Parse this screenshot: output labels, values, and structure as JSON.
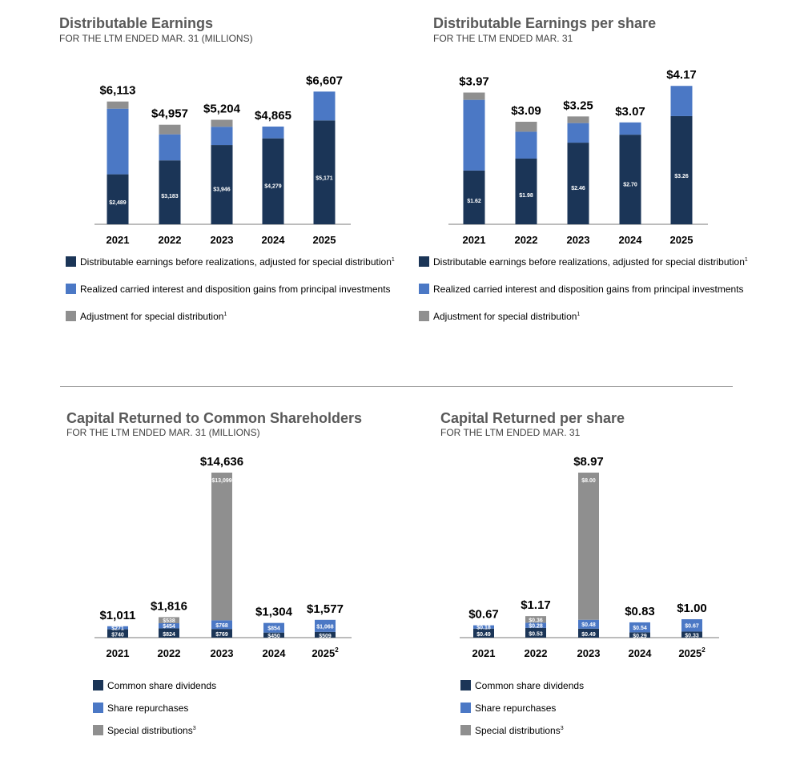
{
  "colors": {
    "dark": "#1b3557",
    "blue": "#4b78c5",
    "gray": "#8f8f8f",
    "axis": "#a6a6a6"
  },
  "chart_data": [
    {
      "type": "bar",
      "stacked": true,
      "title": "Distributable Earnings",
      "subtitle": "FOR THE LTM ENDED MAR. 31 (MILLIONS)",
      "categories": [
        "2021",
        "2022",
        "2023",
        "2024",
        "2025"
      ],
      "category_notes": [
        "",
        "",
        "",
        "",
        ""
      ],
      "totals": [
        "$6,113",
        "$4,957",
        "$5,204",
        "$4,865",
        "$6,607"
      ],
      "ylim": [
        0,
        6700
      ],
      "series": [
        {
          "name": "Distributable earnings before realizations, adjusted for special distribution",
          "note": "1",
          "color": "dark",
          "values": [
            2489,
            3183,
            3946,
            4279,
            5171
          ],
          "labels": [
            "$2,489",
            "$3,183",
            "$3,946",
            "$4,279",
            "$5,171"
          ]
        },
        {
          "name": "Realized carried interest and disposition gains from principal investments",
          "note": "",
          "color": "blue",
          "values": [
            3267,
            1297,
            910,
            586,
            1436
          ],
          "labels": [
            "",
            "",
            "",
            "",
            ""
          ]
        },
        {
          "name": "Adjustment for special distribution",
          "note": "1",
          "color": "gray",
          "values": [
            357,
            477,
            348,
            0,
            0
          ],
          "labels": [
            "",
            "",
            "",
            "",
            ""
          ]
        }
      ]
    },
    {
      "type": "bar",
      "stacked": true,
      "title": "Distributable Earnings per share",
      "subtitle": "FOR THE LTM ENDED MAR. 31",
      "categories": [
        "2021",
        "2022",
        "2023",
        "2024",
        "2025"
      ],
      "category_notes": [
        "",
        "",
        "",
        "",
        ""
      ],
      "totals": [
        "$3.97",
        "$3.09",
        "$3.25",
        "$3.07",
        "$4.17"
      ],
      "ylim": [
        0,
        4.2
      ],
      "series": [
        {
          "name": "Distributable earnings before realizations, adjusted for special distribution",
          "note": "1",
          "color": "dark",
          "values": [
            1.62,
            1.98,
            2.46,
            2.7,
            3.26
          ],
          "labels": [
            "$1.62",
            "$1.98",
            "$2.46",
            "$2.70",
            "$3.26"
          ]
        },
        {
          "name": "Realized carried interest and disposition gains from principal investments",
          "note": "",
          "color": "blue",
          "values": [
            2.13,
            0.81,
            0.59,
            0.37,
            0.91
          ],
          "labels": [
            "",
            "",
            "",
            "",
            ""
          ]
        },
        {
          "name": "Adjustment for special distribution",
          "note": "1",
          "color": "gray",
          "values": [
            0.22,
            0.3,
            0.2,
            0,
            0
          ],
          "labels": [
            "",
            "",
            "",
            "",
            ""
          ]
        }
      ]
    },
    {
      "type": "bar",
      "stacked": true,
      "title": "Capital Returned to Common Shareholders",
      "subtitle": "FOR THE LTM ENDED MAR. 31 (MILLIONS)",
      "categories": [
        "2021",
        "2022",
        "2023",
        "2024",
        "2025"
      ],
      "category_notes": [
        "",
        "",
        "",
        "",
        "2"
      ],
      "totals": [
        "$1,011",
        "$1,816",
        "$14,636",
        "$1,304",
        "$1,577"
      ],
      "ylim": [
        0,
        14636
      ],
      "series": [
        {
          "name": "Common share dividends",
          "note": "",
          "color": "dark",
          "values": [
            740,
            824,
            769,
            450,
            509
          ],
          "labels": [
            "$740",
            "$824",
            "$769",
            "$450",
            "$509"
          ]
        },
        {
          "name": "Share repurchases",
          "note": "",
          "color": "blue",
          "values": [
            271,
            454,
            768,
            854,
            1068
          ],
          "labels": [
            "$271",
            "$454",
            "$768",
            "$854",
            "$1,068"
          ]
        },
        {
          "name": "Special distributions",
          "note": "3",
          "color": "gray",
          "values": [
            0,
            538,
            13099,
            0,
            0
          ],
          "labels": [
            "",
            "$538",
            "$13,099",
            "",
            ""
          ]
        }
      ]
    },
    {
      "type": "bar",
      "stacked": true,
      "title": "Capital Returned per share",
      "subtitle": "FOR THE LTM ENDED MAR. 31",
      "categories": [
        "2021",
        "2022",
        "2023",
        "2024",
        "2025"
      ],
      "category_notes": [
        "",
        "",
        "",
        "",
        "2"
      ],
      "totals": [
        "$0.67",
        "$1.17",
        "$8.97",
        "$0.83",
        "$1.00"
      ],
      "ylim": [
        0,
        8.97
      ],
      "series": [
        {
          "name": "Common share dividends",
          "note": "",
          "color": "dark",
          "values": [
            0.49,
            0.53,
            0.49,
            0.29,
            0.33
          ],
          "labels": [
            "$0.49",
            "$0.53",
            "$0.49",
            "$0.29",
            "$0.33"
          ]
        },
        {
          "name": "Share repurchases",
          "note": "",
          "color": "blue",
          "values": [
            0.18,
            0.28,
            0.48,
            0.54,
            0.67
          ],
          "labels": [
            "$0.18",
            "$0.28",
            "$0.48",
            "$0.54",
            "$0.67"
          ]
        },
        {
          "name": "Special distributions",
          "note": "3",
          "color": "gray",
          "values": [
            0,
            0.36,
            8.0,
            0,
            0
          ],
          "labels": [
            "",
            "$0.36",
            "$8.00",
            "",
            ""
          ]
        }
      ]
    }
  ]
}
